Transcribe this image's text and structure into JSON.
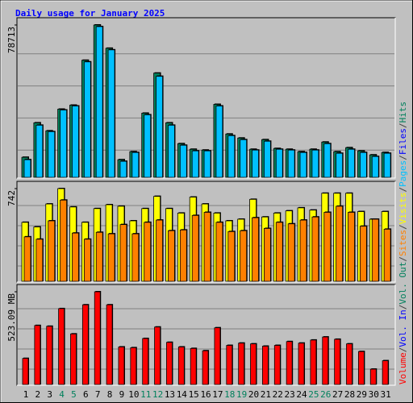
{
  "chart_data": [
    {
      "type": "bar",
      "title": "Daily usage for January 2025",
      "ylim": [
        0,
        78713
      ],
      "yticks": [
        78713
      ],
      "series": [
        {
          "name": "Hits",
          "color": "#00805c",
          "values": [
            10357,
            28172,
            24029,
            35215,
            37286,
            60487,
            78713,
            66702,
            9114,
            13257,
            33143,
            53858,
            28172,
            17400,
            14500,
            14086,
            37700,
            22372,
            20300,
            14500,
            19472,
            14915,
            14500,
            13257,
            14500,
            18229,
            13257,
            15329,
            13672,
            11600,
            12843
          ]
        },
        {
          "name": "Files",
          "color": "#00c0ff",
          "values": [
            9114,
            26929,
            23615,
            34801,
            36872,
            59658,
            77884,
            65873,
            8286,
            12843,
            32315,
            52201,
            26929,
            16572,
            13672,
            13672,
            36872,
            21543,
            19472,
            14086,
            18643,
            14500,
            14086,
            12843,
            14086,
            17400,
            12429,
            14500,
            12843,
            10772,
            12429
          ]
        }
      ],
      "side_labels": [
        {
          "text": "Volume",
          "color": "#ff0000"
        },
        {
          "text": "Vol. In",
          "color": "#0000ff"
        },
        {
          "text": "Vol. Out",
          "color": "#00805c"
        },
        {
          "text": "Sites",
          "color": "#ff8000"
        },
        {
          "text": "Visits",
          "color": "#ffff00"
        },
        {
          "text": "Pages",
          "color": "#00c0ff"
        },
        {
          "text": "Files",
          "color": "#0000ff"
        },
        {
          "text": "Hits",
          "color": "#00805c"
        }
      ],
      "side_separator": "/"
    },
    {
      "type": "bar",
      "ylim": [
        0,
        742
      ],
      "yticks": [
        742
      ],
      "series": [
        {
          "name": "Visits",
          "color": "#ffff00",
          "values": [
            472,
            435,
            619,
            742,
            595,
            472,
            582,
            613,
            601,
            484,
            582,
            680,
            582,
            546,
            674,
            619,
            546,
            484,
            497,
            656,
            515,
            546,
            564,
            588,
            570,
            705,
            705,
            705,
            558,
            497,
            558
          ]
        },
        {
          "name": "Sites",
          "color": "#ff8000",
          "values": [
            356,
            337,
            484,
            650,
            386,
            337,
            392,
            380,
            454,
            380,
            472,
            490,
            405,
            411,
            527,
            552,
            472,
            398,
            405,
            509,
            423,
            472,
            460,
            490,
            515,
            552,
            601,
            552,
            441,
            497,
            417
          ]
        }
      ]
    },
    {
      "type": "bar",
      "ylim": [
        0,
        523.09
      ],
      "yticks": [
        {
          "value": 523.09,
          "label": "523.09 MB"
        }
      ],
      "series": [
        {
          "name": "Volume",
          "color": "#ff0000",
          "values": [
            147.0,
            332.9,
            328.5,
            428.0,
            285.3,
            449.6,
            523.09,
            449.6,
            211.8,
            207.5,
            259.4,
            324.2,
            237.8,
            211.8,
            203.2,
            190.2,
            319.9,
            220.5,
            233.4,
            229.1,
            216.1,
            220.5,
            242.1,
            233.4,
            250.7,
            268.0,
            255.1,
            229.1,
            185.9,
            86.5,
            134.0
          ]
        }
      ],
      "categories": [
        "1",
        "2",
        "3",
        "4",
        "5",
        "6",
        "7",
        "8",
        "9",
        "10",
        "11",
        "12",
        "13",
        "14",
        "15",
        "16",
        "17",
        "18",
        "19",
        "20",
        "21",
        "22",
        "23",
        "24",
        "25",
        "26",
        "27",
        "28",
        "29",
        "30",
        "31"
      ],
      "category_colors": [
        "#000000",
        "#000000",
        "#000000",
        "#00805c",
        "#00805c",
        "#000000",
        "#000000",
        "#000000",
        "#000000",
        "#000000",
        "#00805c",
        "#00805c",
        "#000000",
        "#000000",
        "#000000",
        "#000000",
        "#000000",
        "#00805c",
        "#00805c",
        "#000000",
        "#000000",
        "#000000",
        "#000000",
        "#000000",
        "#00805c",
        "#00805c",
        "#000000",
        "#000000",
        "#000000",
        "#000000",
        "#000000"
      ]
    }
  ]
}
